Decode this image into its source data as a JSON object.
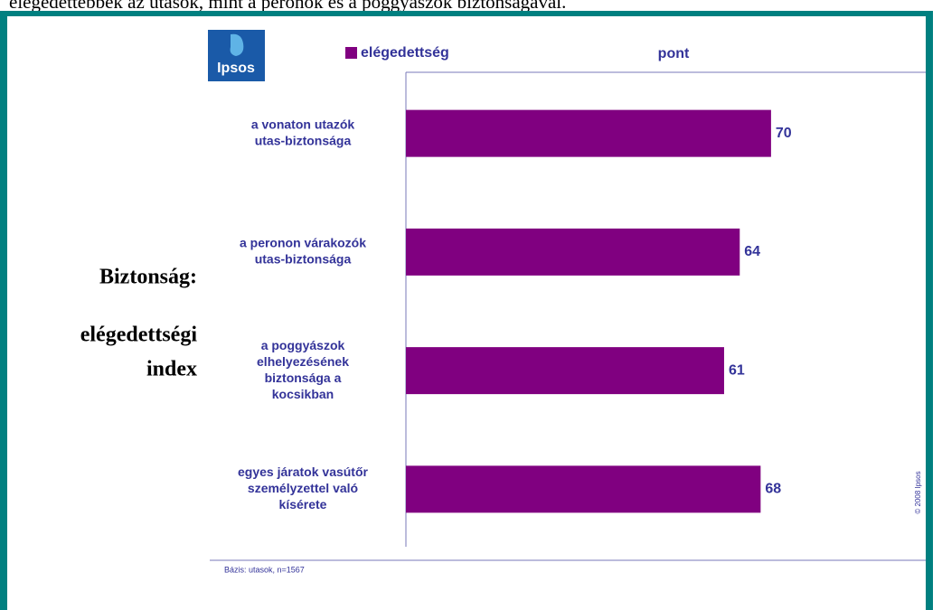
{
  "header": {
    "text": "elégedettebbek az utasok, mint a peronok és a poggyászok biztonságával."
  },
  "logo": {
    "text": "Ipsos"
  },
  "side_title": {
    "line1": "Biztonság:",
    "line2": "elégedettségi",
    "line3": "index"
  },
  "chart_data": {
    "type": "hbar",
    "categories": [
      [
        "a vonaton utazók",
        "utas-biztonsága"
      ],
      [
        "a peronon várakozók",
        "utas-biztonsága"
      ],
      [
        "a poggyászok",
        "elhelyezésének",
        "biztonsága a",
        "kocsikban"
      ],
      [
        "egyes járatok vasútőr",
        "személyzettel való",
        "kísérete"
      ]
    ],
    "series": [
      {
        "name": "elégedettség",
        "color": "#800080",
        "values": [
          70,
          64,
          61,
          68
        ]
      }
    ],
    "axis_label": "pont",
    "xlim": [
      0,
      100
    ]
  },
  "footnote": "Bázis: utasok, n=1567",
  "copyright": "© 2008 Ipsos"
}
